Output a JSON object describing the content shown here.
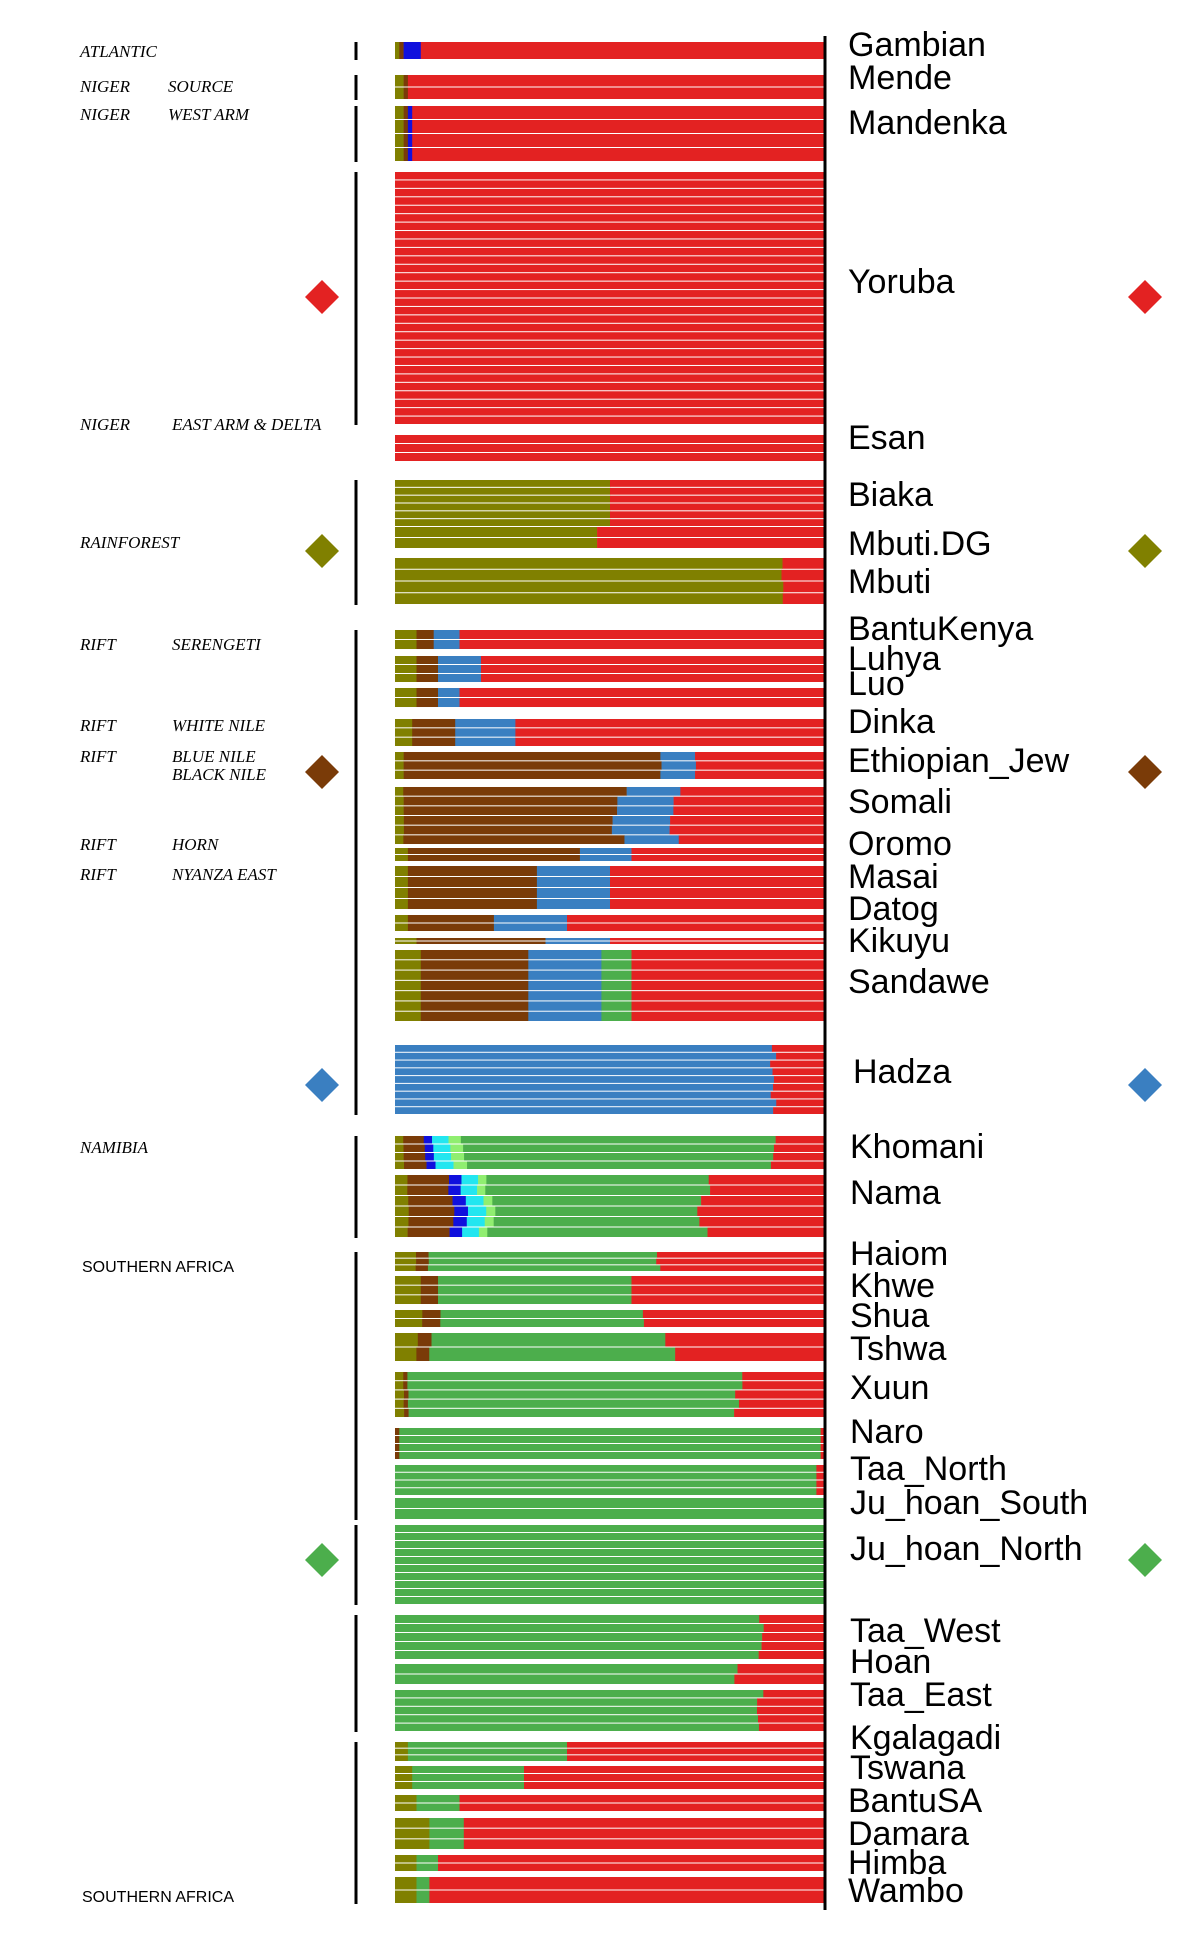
{
  "chart_data": {
    "type": "stacked-bar-ancestry",
    "orientation": "horizontal",
    "components": [
      {
        "name": "west-african",
        "color": "#e32222"
      },
      {
        "name": "rainforest",
        "color": "#808000"
      },
      {
        "name": "east-african",
        "color": "#7a3b08"
      },
      {
        "name": "hadza",
        "color": "#3a7fc1"
      },
      {
        "name": "khoisan",
        "color": "#4cae4c"
      },
      {
        "name": "minor-blue",
        "color": "#1010dd"
      },
      {
        "name": "minor-cyan",
        "color": "#22e6f0"
      },
      {
        "name": "minor-light-green",
        "color": "#90ee70"
      }
    ],
    "populations": [
      {
        "name": "Gambian",
        "n": 1,
        "values": [
          0.94,
          0.01,
          0.01,
          0.0,
          0.0,
          0.04,
          0.0,
          0.0
        ]
      },
      {
        "name": "Mende",
        "n": 2,
        "values": [
          0.97,
          0.02,
          0.01,
          0.0,
          0.0,
          0.0,
          0.0,
          0.0
        ]
      },
      {
        "name": "Mandenka",
        "n": 4,
        "values": [
          0.96,
          0.02,
          0.01,
          0.0,
          0.0,
          0.01,
          0.0,
          0.0
        ]
      },
      {
        "name": "Yoruba",
        "n": 30,
        "values": [
          1.0,
          0.0,
          0.0,
          0.0,
          0.0,
          0.0,
          0.0,
          0.0
        ]
      },
      {
        "name": "Esan",
        "n": 3,
        "values": [
          1.0,
          0.0,
          0.0,
          0.0,
          0.0,
          0.0,
          0.0,
          0.0
        ]
      },
      {
        "name": "Biaka",
        "n": 6,
        "values": [
          0.5,
          0.5,
          0.0,
          0.0,
          0.0,
          0.0,
          0.0,
          0.0
        ]
      },
      {
        "name": "Mbuti.DG",
        "n": 2,
        "values": [
          0.53,
          0.47,
          0.0,
          0.0,
          0.0,
          0.0,
          0.0,
          0.0
        ]
      },
      {
        "name": "Mbuti",
        "n": 4,
        "values": [
          0.1,
          0.9,
          0.0,
          0.0,
          0.0,
          0.0,
          0.0,
          0.0
        ]
      },
      {
        "name": "BantuKenya",
        "n": 2,
        "values": [
          0.85,
          0.05,
          0.04,
          0.06,
          0.0,
          0.0,
          0.0,
          0.0
        ]
      },
      {
        "name": "Luhya",
        "n": 3,
        "values": [
          0.8,
          0.05,
          0.05,
          0.1,
          0.0,
          0.0,
          0.0,
          0.0
        ]
      },
      {
        "name": "Luo",
        "n": 2,
        "values": [
          0.85,
          0.05,
          0.05,
          0.05,
          0.0,
          0.0,
          0.0,
          0.0
        ]
      },
      {
        "name": "Dinka",
        "n": 3,
        "values": [
          0.72,
          0.04,
          0.1,
          0.14,
          0.0,
          0.0,
          0.0,
          0.0
        ]
      },
      {
        "name": "Ethiopian_Jew",
        "n": 3,
        "values": [
          0.3,
          0.02,
          0.6,
          0.08,
          0.0,
          0.0,
          0.0,
          0.0
        ]
      },
      {
        "name": "Somali",
        "n": 6,
        "values": [
          0.35,
          0.02,
          0.5,
          0.13,
          0.0,
          0.0,
          0.0,
          0.0
        ]
      },
      {
        "name": "Oromo",
        "n": 2,
        "values": [
          0.45,
          0.03,
          0.4,
          0.12,
          0.0,
          0.0,
          0.0,
          0.0
        ]
      },
      {
        "name": "Masai",
        "n": 4,
        "values": [
          0.5,
          0.03,
          0.3,
          0.17,
          0.0,
          0.0,
          0.0,
          0.0
        ]
      },
      {
        "name": "Datog",
        "n": 2,
        "values": [
          0.6,
          0.03,
          0.2,
          0.17,
          0.0,
          0.0,
          0.0,
          0.0
        ]
      },
      {
        "name": "Kikuyu",
        "n": 2,
        "values": [
          0.5,
          0.05,
          0.3,
          0.15,
          0.0,
          0.0,
          0.0,
          0.0
        ]
      },
      {
        "name": "Sandawe",
        "n": 7,
        "values": [
          0.45,
          0.06,
          0.25,
          0.17,
          0.07,
          0.0,
          0.0,
          0.0
        ]
      },
      {
        "name": "Hadza",
        "n": 9,
        "values": [
          0.12,
          0.0,
          0.0,
          0.88,
          0.0,
          0.0,
          0.0,
          0.0
        ]
      },
      {
        "name": "Khomani",
        "n": 4,
        "values": [
          0.12,
          0.02,
          0.05,
          0.0,
          0.72,
          0.02,
          0.04,
          0.03
        ]
      },
      {
        "name": "Nama",
        "n": 6,
        "values": [
          0.28,
          0.03,
          0.1,
          0.0,
          0.5,
          0.03,
          0.04,
          0.02
        ]
      },
      {
        "name": "Haiom",
        "n": 3,
        "values": [
          0.4,
          0.05,
          0.03,
          0.0,
          0.52,
          0.0,
          0.0,
          0.0
        ]
      },
      {
        "name": "Khwe",
        "n": 3,
        "values": [
          0.45,
          0.06,
          0.04,
          0.0,
          0.45,
          0.0,
          0.0,
          0.0
        ]
      },
      {
        "name": "Shua",
        "n": 2,
        "values": [
          0.4,
          0.06,
          0.04,
          0.0,
          0.5,
          0.0,
          0.0,
          0.0
        ]
      },
      {
        "name": "Tshwa",
        "n": 2,
        "values": [
          0.35,
          0.05,
          0.03,
          0.0,
          0.57,
          0.0,
          0.0,
          0.0
        ]
      },
      {
        "name": "Xuun",
        "n": 5,
        "values": [
          0.2,
          0.02,
          0.01,
          0.0,
          0.77,
          0.0,
          0.0,
          0.0
        ]
      },
      {
        "name": "Naro",
        "n": 4,
        "values": [
          0.01,
          0.0,
          0.01,
          0.0,
          0.98,
          0.0,
          0.0,
          0.0
        ]
      },
      {
        "name": "Taa_North",
        "n": 4,
        "values": [
          0.02,
          0.0,
          0.0,
          0.0,
          0.98,
          0.0,
          0.0,
          0.0
        ]
      },
      {
        "name": "Ju_hoan_South",
        "n": 2,
        "values": [
          0.0,
          0.0,
          0.0,
          0.0,
          1.0,
          0.0,
          0.0,
          0.0
        ]
      },
      {
        "name": "Ju_hoan_North",
        "n": 10,
        "values": [
          0.0,
          0.0,
          0.0,
          0.0,
          1.0,
          0.0,
          0.0,
          0.0
        ]
      },
      {
        "name": "Taa_West",
        "n": 5,
        "values": [
          0.15,
          0.0,
          0.0,
          0.0,
          0.85,
          0.0,
          0.0,
          0.0
        ]
      },
      {
        "name": "Hoan",
        "n": 2,
        "values": [
          0.2,
          0.0,
          0.0,
          0.0,
          0.8,
          0.0,
          0.0,
          0.0
        ]
      },
      {
        "name": "Taa_East",
        "n": 5,
        "values": [
          0.15,
          0.0,
          0.0,
          0.0,
          0.85,
          0.0,
          0.0,
          0.0
        ]
      },
      {
        "name": "Kgalagadi",
        "n": 3,
        "values": [
          0.6,
          0.03,
          0.0,
          0.0,
          0.37,
          0.0,
          0.0,
          0.0
        ]
      },
      {
        "name": "Tswana",
        "n": 3,
        "values": [
          0.7,
          0.04,
          0.0,
          0.0,
          0.26,
          0.0,
          0.0,
          0.0
        ]
      },
      {
        "name": "BantuSA",
        "n": 2,
        "values": [
          0.85,
          0.05,
          0.0,
          0.0,
          0.1,
          0.0,
          0.0,
          0.0
        ]
      },
      {
        "name": "Damara",
        "n": 3,
        "values": [
          0.84,
          0.08,
          0.0,
          0.0,
          0.08,
          0.0,
          0.0,
          0.0
        ]
      },
      {
        "name": "Himba",
        "n": 2,
        "values": [
          0.9,
          0.05,
          0.0,
          0.0,
          0.05,
          0.0,
          0.0,
          0.0
        ]
      },
      {
        "name": "Wambo",
        "n": 2,
        "values": [
          0.92,
          0.05,
          0.0,
          0.0,
          0.03,
          0.0,
          0.0,
          0.0
        ]
      }
    ],
    "region_labels": [
      {
        "col1": "ATLANTIC",
        "col2": ""
      },
      {
        "col1": "NIGER",
        "col2": "SOURCE"
      },
      {
        "col1": "NIGER",
        "col2": "WEST ARM"
      },
      {
        "col1": "NIGER",
        "col2": "EAST ARM & DELTA"
      },
      {
        "col1": "RAINFOREST",
        "col2": ""
      },
      {
        "col1": "RIFT",
        "col2": "SERENGETI"
      },
      {
        "col1": "RIFT",
        "col2": "WHITE NILE"
      },
      {
        "col1": "RIFT",
        "col2": "BLUE NILE"
      },
      {
        "col1": "",
        "col2": "BLACK NILE"
      },
      {
        "col1": "RIFT",
        "col2": "HORN"
      },
      {
        "col1": "RIFT",
        "col2": "NYANZA EAST"
      },
      {
        "col1": "NAMIBIA",
        "col2": ""
      },
      {
        "col1": "SOUTHERN AFRICA",
        "col2": ""
      },
      {
        "col1": "SOUTHERN AFRICA",
        "col2": ""
      }
    ],
    "markers": [
      {
        "name": "Yoruba",
        "color": "#e32222"
      },
      {
        "name": "Mbuti.DG",
        "color": "#808000"
      },
      {
        "name": "Ethiopian_Jew",
        "color": "#7a3b08"
      },
      {
        "name": "Hadza",
        "color": "#3a7fc1"
      },
      {
        "name": "Ju_hoan_North",
        "color": "#4cae4c"
      }
    ]
  }
}
